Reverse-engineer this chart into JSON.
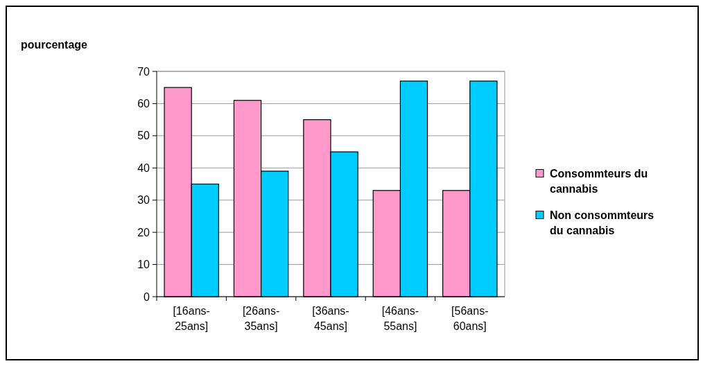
{
  "chart_data": {
    "type": "bar",
    "ylabel": "pourcentage",
    "categories": [
      "[16ans-25ans]",
      "[26ans-35ans]",
      "[36ans-45ans]",
      "[46ans-55ans]",
      "[56ans-60ans]"
    ],
    "series": [
      {
        "name": "Consommteurs du cannabis",
        "color": "#ff99cc",
        "values": [
          65,
          61,
          55,
          33,
          33
        ]
      },
      {
        "name": "Non consommteurs du cannabis",
        "color": "#00ccff",
        "values": [
          35,
          39,
          45,
          67,
          67
        ]
      }
    ],
    "ylim": [
      0,
      70
    ],
    "yticks": [
      0,
      10,
      20,
      30,
      40,
      50,
      60,
      70
    ],
    "grid": "y",
    "legend": "right"
  }
}
